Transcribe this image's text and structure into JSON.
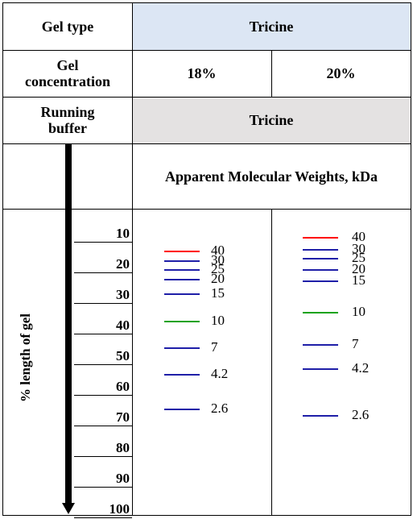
{
  "header": {
    "gel_type_label": "Gel type",
    "gel_type_value": "Tricine",
    "gel_conc_label": "Gel\nconcentration",
    "conc_a": "18%",
    "conc_b": "20%",
    "running_buffer_label": "Running\nbuffer",
    "running_buffer_value": "Tricine",
    "mw_title": "Apparent Molecular Weights, kDa",
    "axis_label": "% length of gel"
  },
  "colors": {
    "header_blue": "#dce6f4",
    "header_gray": "#e4e2e2",
    "band_red": "#ff0000",
    "band_blue": "#1f1fa8",
    "band_green": "#1aa31a"
  },
  "chart_data": {
    "type": "table",
    "percent_ticks": [
      10,
      20,
      30,
      40,
      50,
      60,
      70,
      80,
      90,
      100
    ],
    "gels": [
      {
        "concentration": "18%",
        "bands": [
          {
            "mw": "40",
            "percent": 8.0,
            "color": "red"
          },
          {
            "mw": "30",
            "percent": 11.0,
            "color": "blue"
          },
          {
            "mw": "25",
            "percent": 14.0,
            "color": "blue"
          },
          {
            "mw": "20",
            "percent": 17.2,
            "color": "blue"
          },
          {
            "mw": "15",
            "percent": 21.8,
            "color": "blue"
          },
          {
            "mw": "10",
            "percent": 30.9,
            "color": "green"
          },
          {
            "mw": "7",
            "percent": 39.4,
            "color": "blue"
          },
          {
            "mw": "4.2",
            "percent": 48.2,
            "color": "blue"
          },
          {
            "mw": "2.6",
            "percent": 59.4,
            "color": "blue"
          }
        ]
      },
      {
        "concentration": "20%",
        "bands": [
          {
            "mw": "40",
            "percent": 3.5,
            "color": "red"
          },
          {
            "mw": "30",
            "percent": 7.3,
            "color": "blue"
          },
          {
            "mw": "25",
            "percent": 10.2,
            "color": "blue"
          },
          {
            "mw": "20",
            "percent": 14.0,
            "color": "blue"
          },
          {
            "mw": "15",
            "percent": 17.5,
            "color": "blue"
          },
          {
            "mw": "10",
            "percent": 27.9,
            "color": "green"
          },
          {
            "mw": "7",
            "percent": 38.5,
            "color": "blue"
          },
          {
            "mw": "4.2",
            "percent": 46.4,
            "color": "blue"
          },
          {
            "mw": "2.6",
            "percent": 61.5,
            "color": "blue"
          }
        ]
      }
    ]
  }
}
